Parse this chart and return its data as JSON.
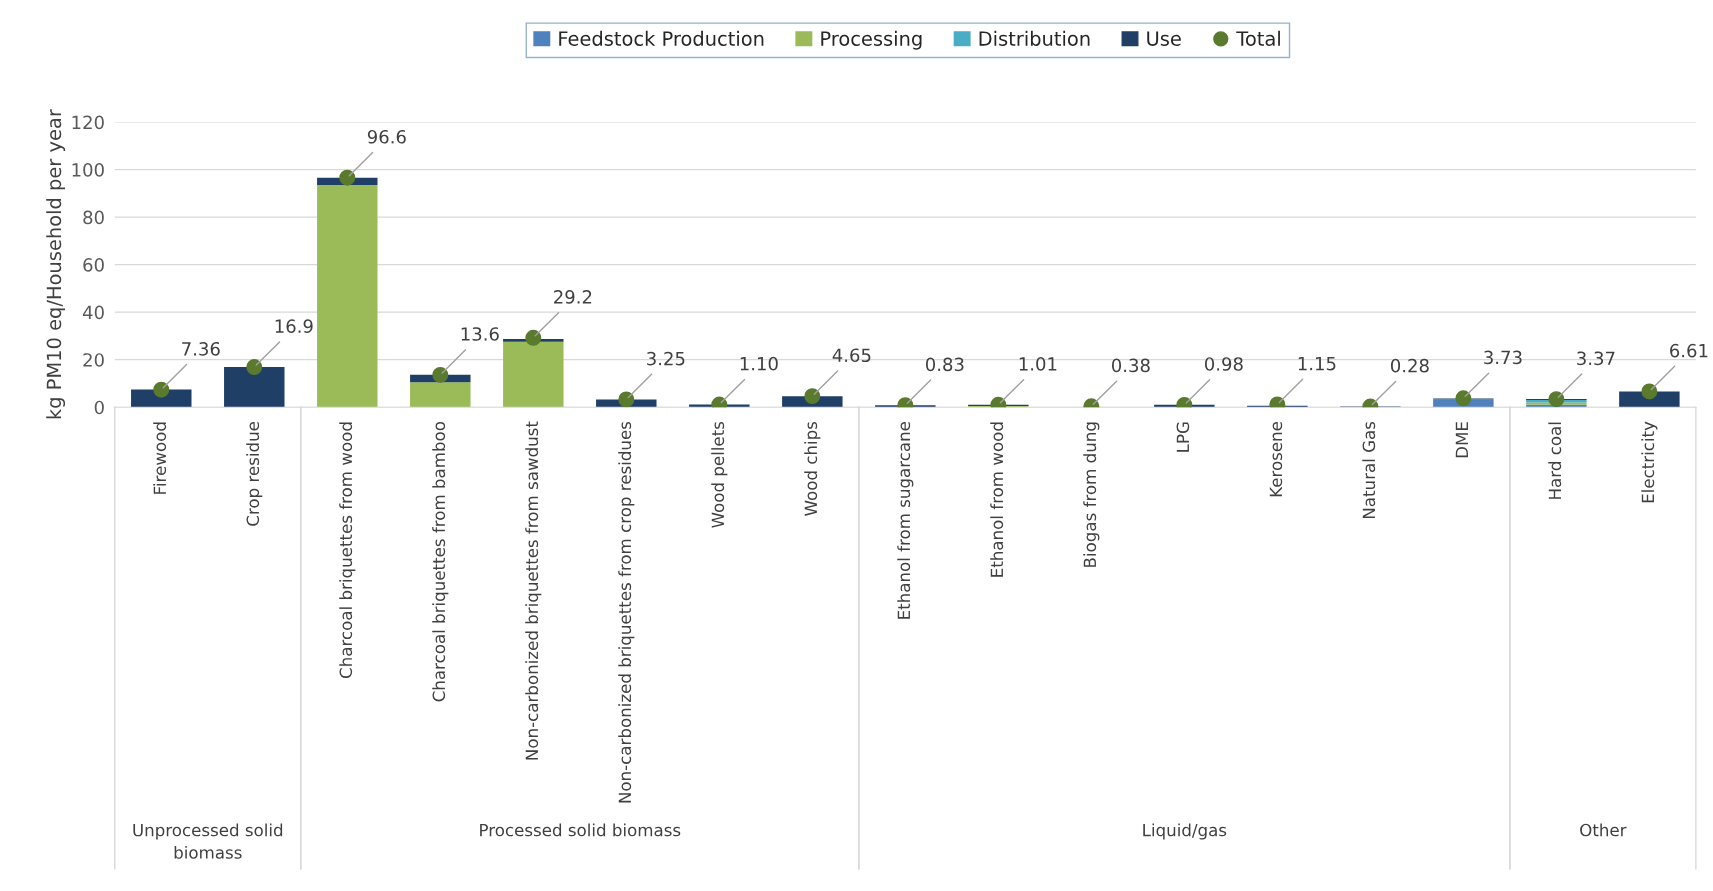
{
  "chart_data": {
    "type": "bar",
    "stacked": true,
    "ylabel": "kg PM10 eq/Household per year",
    "categories": [
      "Firewood",
      "Crop residue",
      "Charcoal briquettes from wood",
      "Charcoal briquettes from bamboo",
      "Non-carbonized briquettes from sawdust",
      "Non-carbonized briquettes from crop residues",
      "Wood pellets",
      "Wood chips",
      "Ethanol from sugarcane",
      "Ethanol from wood",
      "Biogas from dung",
      "LPG",
      "Kerosene",
      "Natural Gas",
      "DME",
      "Hard coal",
      "Electricity"
    ],
    "series": [
      {
        "name": "Feedstock Production",
        "color": "#4f81bd",
        "values": [
          0,
          0,
          0,
          0,
          0,
          0,
          0,
          0,
          0,
          0,
          0,
          0,
          null,
          0,
          3.3,
          1,
          0
        ]
      },
      {
        "name": "Processing",
        "color": "#9bbb59",
        "values": [
          0,
          0,
          93.5,
          10.5,
          27.5,
          0,
          0,
          0,
          0,
          0.5,
          0,
          0,
          0,
          0,
          0,
          1,
          0
        ]
      },
      {
        "name": "Distribution",
        "color": "#4bacc6",
        "values": [
          0,
          0,
          0,
          0,
          null,
          0,
          0,
          0,
          0,
          0,
          0,
          0,
          0,
          0,
          0,
          1,
          0
        ]
      },
      {
        "name": "Use",
        "color": "#1f3f66",
        "values": [
          7.4,
          16.9,
          3.1,
          3.1,
          1.2,
          3.2,
          1.1,
          4.6,
          0.8,
          0.5,
          0,
          1,
          0.6,
          0.3,
          0.4,
          0.4,
          6.6
        ]
      },
      {
        "name": "Total",
        "type": "scatter",
        "color": "#5a7a2e",
        "values": [
          7.36,
          16.9,
          96.6,
          13.6,
          29.2,
          3.25,
          1.1,
          4.65,
          0.83,
          1.01,
          0.38,
          0.98,
          1.15,
          0.28,
          3.73,
          3.37,
          6.61
        ],
        "value_labels": [
          "7.36",
          "16.9",
          "96.6",
          "13.6",
          "29.2",
          "3.25",
          "1.10",
          "4.65",
          "0.83",
          "1.01",
          "0.38",
          "0.98",
          "1.15",
          "0.28",
          "3.73",
          "3.37",
          "6.61"
        ]
      }
    ],
    "ylim": [
      0,
      120
    ],
    "yticks": [
      0,
      20,
      40,
      60,
      80,
      100,
      120
    ],
    "grid": "y",
    "legend": "top",
    "marker": "circle",
    "annotations": [
      "Unprocessed solid biomass",
      "Processed solid biomass",
      "Liquid/gas",
      "Other"
    ]
  }
}
